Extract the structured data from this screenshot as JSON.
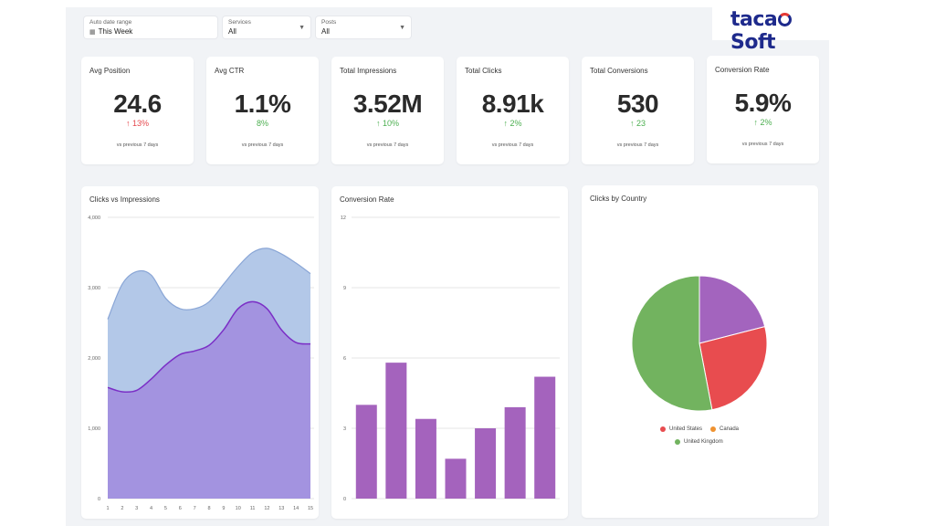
{
  "filters": [
    {
      "label": "Auto date range",
      "value": "This Week",
      "icon": "calendar-icon"
    },
    {
      "label": "Services",
      "value": "All",
      "icon": "chevron-down-icon"
    },
    {
      "label": "Posts",
      "value": "All",
      "icon": "chevron-down-icon"
    }
  ],
  "brand": {
    "name": "tacaSoft",
    "color": "#1e2a8c",
    "accent": "#e53935"
  },
  "kpis": [
    {
      "title": "Avg Position",
      "value": "24.6",
      "delta": "↑ 13%",
      "note": "vs previous 7 days",
      "delta_color": "#e5484d"
    },
    {
      "title": "Avg CTR",
      "value": "1.1%",
      "delta": "8%",
      "note": "vs previous 7 days",
      "delta_color": "#4caf50"
    },
    {
      "title": "Total Impressions",
      "value": "3.52M",
      "delta": "↑ 10%",
      "note": "vs previous 7 days",
      "delta_color": "#4caf50"
    },
    {
      "title": "Total Clicks",
      "value": "8.91k",
      "delta": "↑ 2%",
      "note": "vs previous 7 days",
      "delta_color": "#4caf50"
    },
    {
      "title": "Total Conversions",
      "value": "530",
      "delta": "↑ 23",
      "note": "vs previous 7 days",
      "delta_color": "#4caf50"
    },
    {
      "title": "Conversion Rate",
      "value": "5.9%",
      "delta": "↑ 2%",
      "note": "vs previous 7 days",
      "delta_color": "#4caf50"
    }
  ],
  "chart_data": [
    {
      "type": "area",
      "title": "Clicks vs Impressions",
      "x": [
        1,
        2,
        3,
        4,
        5,
        6,
        7,
        8,
        9,
        10,
        11,
        12,
        13,
        14,
        15
      ],
      "ylim": [
        0,
        4000
      ],
      "yticks": [
        "0",
        "1,000",
        "2,000",
        "3,000",
        "4,000"
      ],
      "ytick_values": [
        0,
        1000,
        2000,
        3000,
        4000
      ],
      "series": [
        {
          "values": [
            2550,
            3050,
            3230,
            3180,
            2850,
            2700,
            2700,
            2800,
            3050,
            3300,
            3500,
            3560,
            3480,
            3350,
            3200
          ],
          "color": "#b3c8e8"
        },
        {
          "values": [
            1580,
            1520,
            1540,
            1700,
            1900,
            2050,
            2100,
            2180,
            2400,
            2700,
            2800,
            2700,
            2400,
            2220,
            2200
          ],
          "color": "#a393e0"
        }
      ],
      "grid": true
    },
    {
      "type": "bar",
      "title": "Conversion Rate",
      "categories": [
        "1",
        "2",
        "3",
        "4",
        "5",
        "6",
        "7"
      ],
      "values": [
        4.0,
        5.8,
        3.4,
        1.7,
        3.0,
        3.9,
        5.2
      ],
      "ylim": [
        0,
        12
      ],
      "yticks": [
        "0",
        "3",
        "6",
        "9",
        "12"
      ],
      "ytick_values": [
        0,
        3,
        6,
        9,
        12
      ],
      "color": "#a463bd",
      "grid": true
    },
    {
      "type": "pie",
      "title": "Clicks by Country",
      "slices": [
        {
          "label": "United States",
          "value": 26,
          "color": "#e84c4f"
        },
        {
          "label": "Canada",
          "value": 0,
          "color": "#ef9230"
        },
        {
          "label": "United Kingdom",
          "value": 53,
          "color": "#72b35f"
        },
        {
          "label": "",
          "value": 21,
          "color": "#a364be"
        }
      ],
      "legend": "bottom"
    }
  ]
}
